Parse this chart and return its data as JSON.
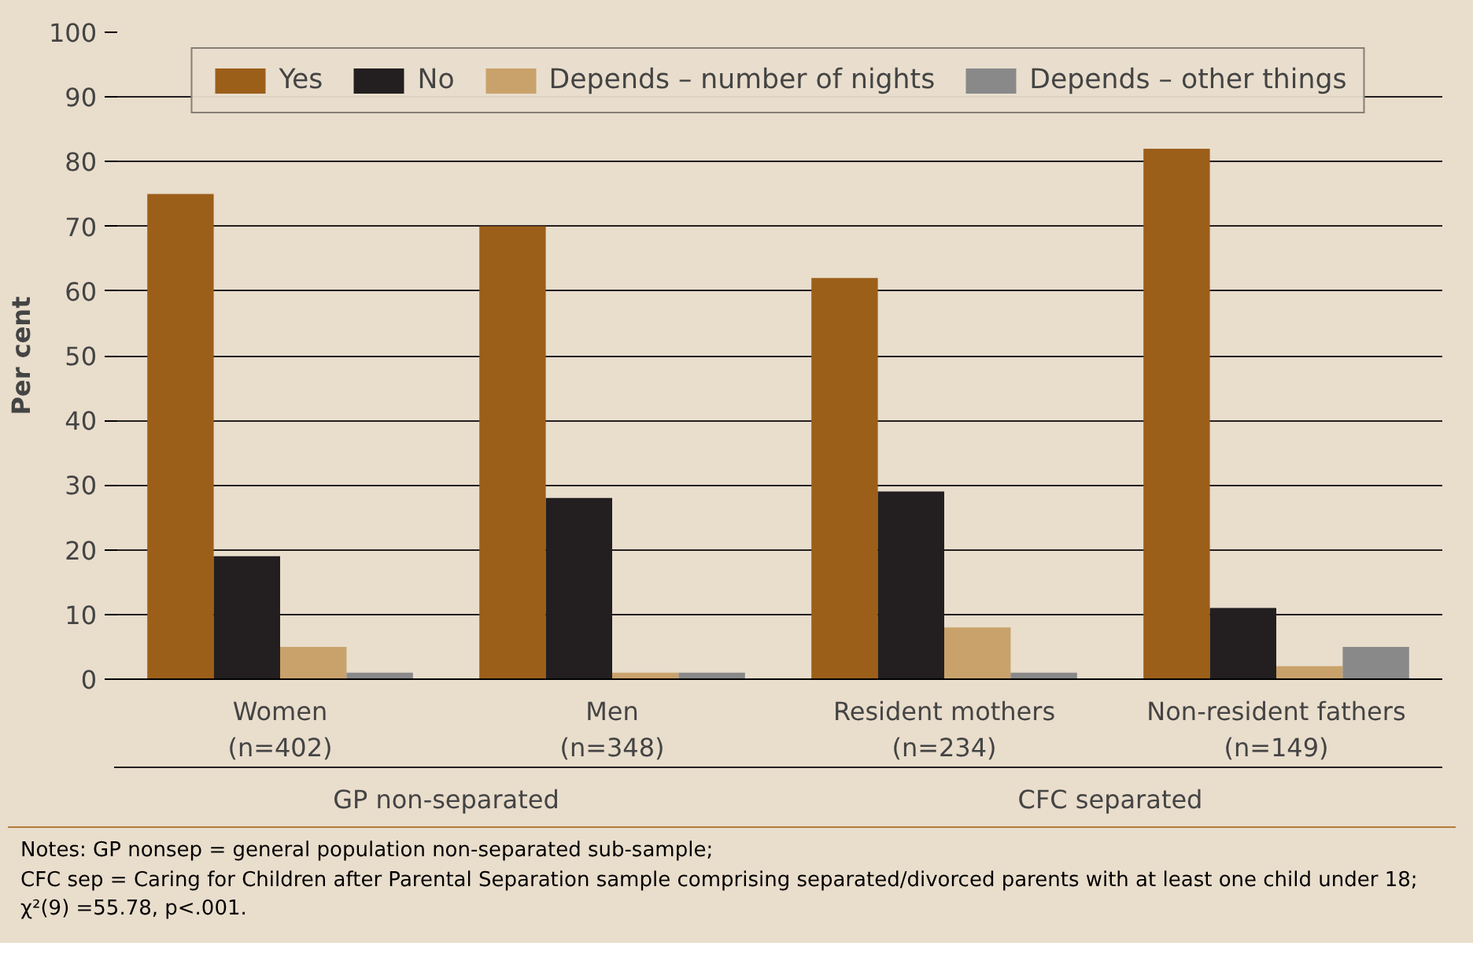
{
  "chart_data": {
    "type": "bar",
    "ylabel": "Per cent",
    "categories": [
      "Women\n(n=402)",
      "Men\n(n=348)",
      "Resident mothers\n(n=234)",
      "Non-resident fathers\n(n=149)"
    ],
    "series": [
      {
        "name": "Yes",
        "color": "#9c5f1a",
        "values": [
          75,
          70,
          62,
          82
        ]
      },
      {
        "name": "No",
        "color": "#231f20",
        "values": [
          19,
          28,
          29,
          11
        ]
      },
      {
        "name": "Depends – number of nights",
        "color": "#c9a26b",
        "values": [
          5,
          1,
          8,
          2
        ]
      },
      {
        "name": "Depends – other things",
        "color": "#898989",
        "values": [
          1,
          1,
          1,
          5
        ]
      }
    ],
    "ylim": [
      0,
      100
    ],
    "yticks": [
      0,
      10,
      20,
      30,
      40,
      50,
      60,
      70,
      80,
      90,
      100
    ],
    "grid": "y",
    "legend": "top",
    "annotations": [
      "GP non-separated",
      "CFC separated",
      "Notes: GP nonsep = general population non-separated sub-sample;\nCFC sep = Caring for Children after Parental Separation sample comprising separated/divorced parents with at least one child under 18;\nχ²(9) =55.78, p<.001."
    ]
  }
}
